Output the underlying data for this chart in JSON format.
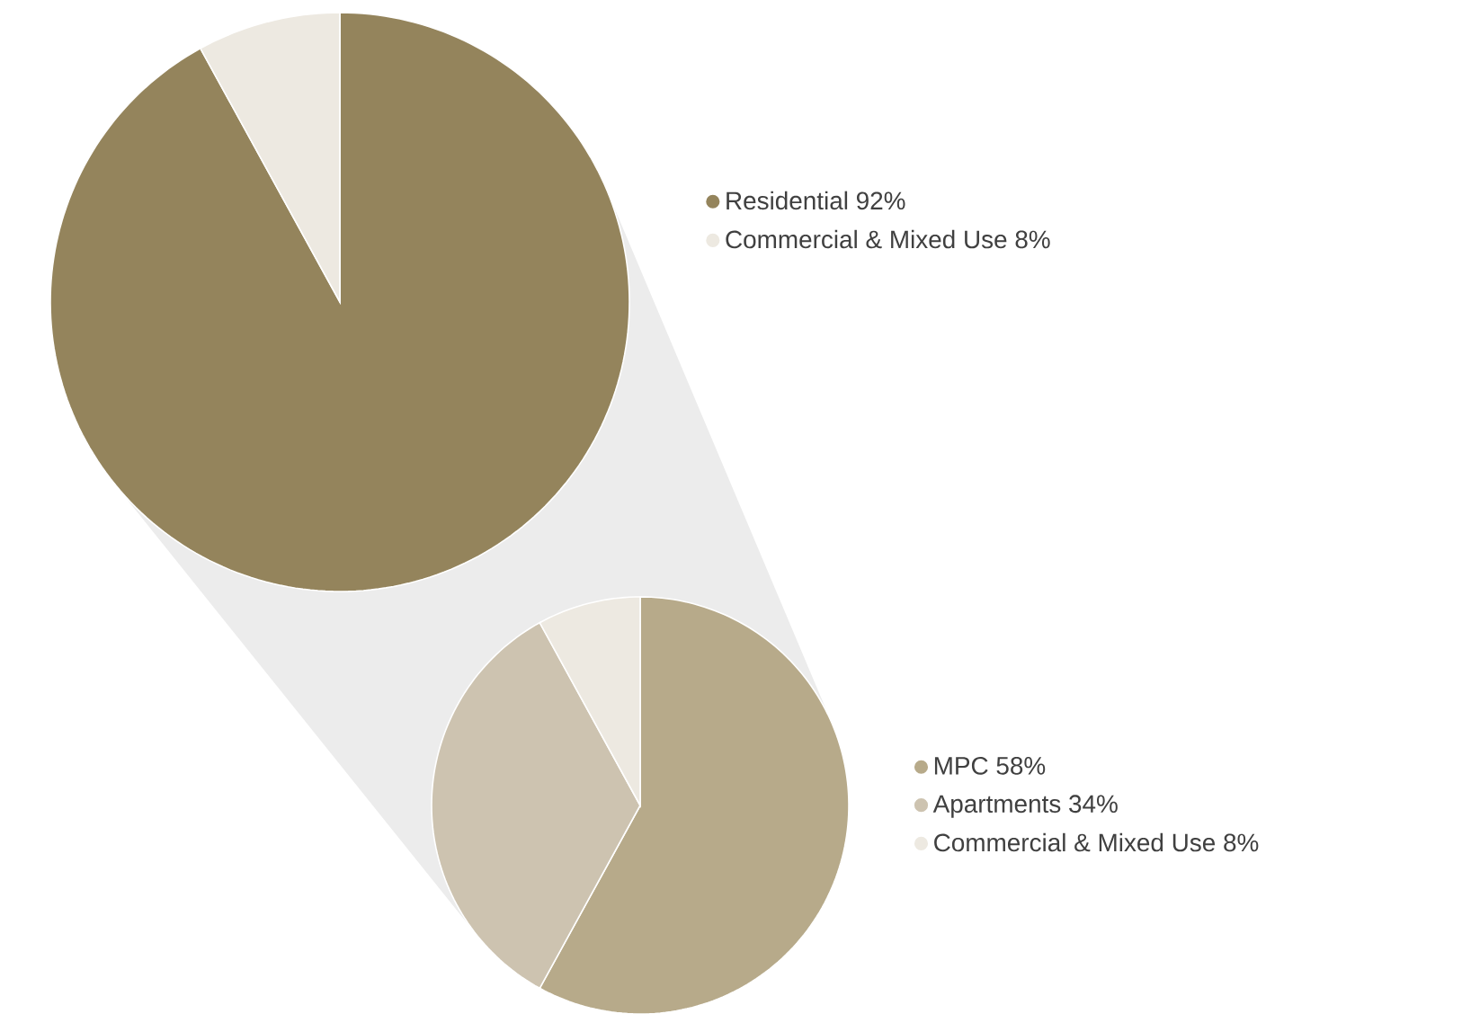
{
  "chart_data": [
    {
      "type": "pie",
      "categories": [
        "Residential 92%",
        "Commercial & Mixed Use 8%"
      ],
      "values": [
        92,
        8
      ],
      "colors": [
        "#94845c",
        "#ede9e1"
      ],
      "legend": "right"
    },
    {
      "type": "pie",
      "categories": [
        "MPC 58%",
        "Apartments 34%",
        "Commercial & Mixed Use 8%"
      ],
      "values": [
        58,
        34,
        8
      ],
      "colors": [
        "#b7aa8a",
        "#cdc3b0",
        "#ede9e1"
      ],
      "legend": "right"
    }
  ]
}
